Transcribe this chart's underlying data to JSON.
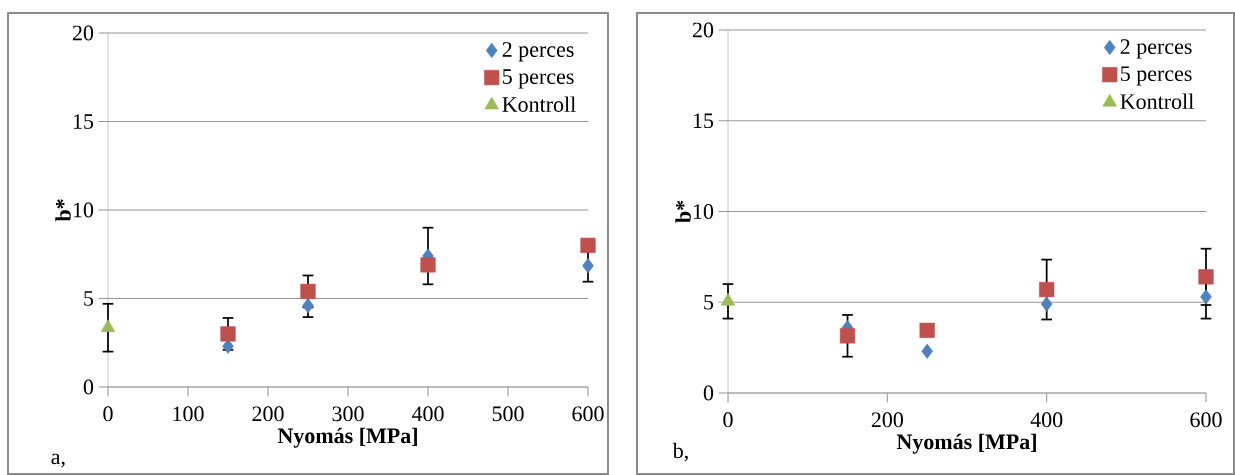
{
  "chart_data": [
    {
      "type": "scatter",
      "xlabel": "Nyomás [MPa]",
      "ylabel": "b*",
      "xlim": [
        0,
        600
      ],
      "xticks": [
        0,
        100,
        200,
        300,
        400,
        500,
        600
      ],
      "ylim": [
        0,
        20
      ],
      "yticks": [
        0,
        5,
        10,
        15,
        20
      ],
      "grid": "y",
      "legend": "top right",
      "annotations": [
        "a,"
      ],
      "series": [
        {
          "name": "2 perces",
          "color": "#4f81bd",
          "marker": "diamond",
          "x": [
            150,
            250,
            400,
            600
          ],
          "values": [
            2.3,
            4.6,
            7.4,
            6.85
          ],
          "errors": [
            null,
            0.65,
            1.6,
            0.9
          ]
        },
        {
          "name": "5 perces",
          "color": "#c0504d",
          "marker": "square",
          "x": [
            150,
            250,
            400,
            600
          ],
          "values": [
            3.0,
            5.4,
            6.9,
            8.0
          ],
          "errors": [
            0.9,
            0.9,
            null,
            null
          ]
        },
        {
          "name": "Kontroll",
          "color": "#9bbb59",
          "marker": "triangle",
          "x": [
            0
          ],
          "values": [
            3.35
          ],
          "errors": [
            1.35
          ]
        }
      ]
    },
    {
      "type": "scatter",
      "xlabel": "Nyomás [MPa]",
      "ylabel": "b*",
      "xlim": [
        0,
        600
      ],
      "xticks": [
        0,
        200,
        400,
        600
      ],
      "ylim": [
        0,
        20
      ],
      "yticks": [
        0,
        5,
        10,
        15,
        20
      ],
      "grid": "y",
      "legend": "top right",
      "annotations": [
        "b,"
      ],
      "series": [
        {
          "name": "2 perces",
          "color": "#4f81bd",
          "marker": "diamond",
          "x": [
            150,
            250,
            400,
            600
          ],
          "values": [
            3.6,
            2.3,
            4.9,
            5.3
          ],
          "errors": [
            null,
            null,
            null,
            1.2
          ]
        },
        {
          "name": "5 perces",
          "color": "#c0504d",
          "marker": "square",
          "x": [
            150,
            250,
            400,
            600
          ],
          "values": [
            3.15,
            3.45,
            5.7,
            6.4
          ],
          "errors": [
            1.15,
            null,
            1.65,
            1.55
          ]
        },
        {
          "name": "Kontroll",
          "color": "#9bbb59",
          "marker": "triangle",
          "x": [
            0
          ],
          "values": [
            5.05
          ],
          "errors": [
            0.95
          ]
        }
      ]
    }
  ]
}
